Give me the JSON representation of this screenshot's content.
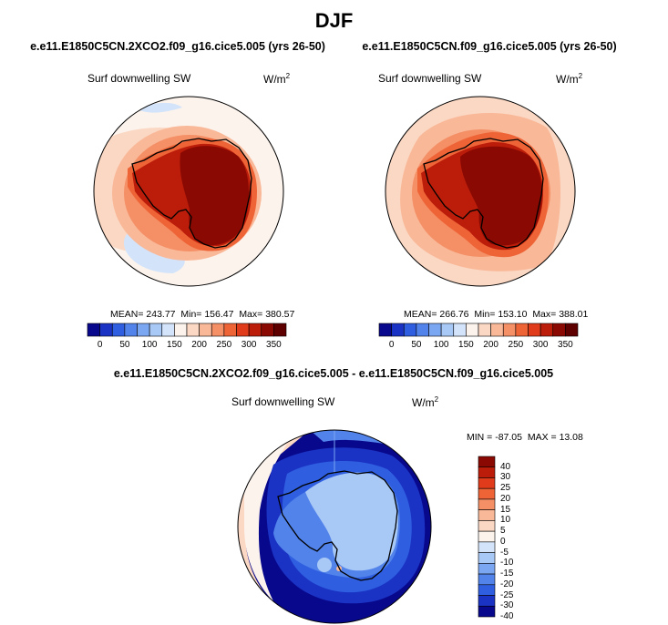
{
  "figure": {
    "season": "DJF"
  },
  "chart_data": [
    {
      "type": "heatmap",
      "projection": "south polar stereographic",
      "case": "e.e11.E1850C5CN.2XCO2.f09_g16.cice5.005 (yrs 26-50)",
      "variable": "Surf downwelling SW",
      "units": "W/m",
      "units_exp": "2",
      "stats": {
        "mean_label": "MEAN=",
        "mean": "243.77",
        "min_label": "Min=",
        "min": "156.47",
        "max_label": "Max=",
        "max": "380.57"
      },
      "colorbar": {
        "orientation": "horizontal",
        "levels": [
          0,
          25,
          50,
          75,
          100,
          125,
          150,
          175,
          200,
          225,
          250,
          275,
          300,
          325,
          350
        ],
        "tick_labels": [
          "0",
          "50",
          "100",
          "150",
          "200",
          "250",
          "300",
          "350"
        ],
        "colors": [
          "#08088c",
          "#1a33c4",
          "#2f5fe0",
          "#5283ea",
          "#7aa6f2",
          "#a8c8f6",
          "#d3e4fa",
          "#fcf3ed",
          "#fbd8c4",
          "#f9b898",
          "#f48f66",
          "#ee6437",
          "#e03b1a",
          "#bb1d0a",
          "#8a0a03",
          "#5e0000"
        ]
      }
    },
    {
      "type": "heatmap",
      "projection": "south polar stereographic",
      "case": "e.e11.E1850C5CN.f09_g16.cice5.005 (yrs 26-50)",
      "variable": "Surf downwelling SW",
      "units": "W/m",
      "units_exp": "2",
      "stats": {
        "mean_label": "MEAN=",
        "mean": "266.76",
        "min_label": "Min=",
        "min": "153.10",
        "max_label": "Max=",
        "max": "388.01"
      },
      "colorbar": {
        "orientation": "horizontal",
        "levels": [
          0,
          25,
          50,
          75,
          100,
          125,
          150,
          175,
          200,
          225,
          250,
          275,
          300,
          325,
          350
        ],
        "tick_labels": [
          "0",
          "50",
          "100",
          "150",
          "200",
          "250",
          "300",
          "350"
        ],
        "colors": [
          "#08088c",
          "#1a33c4",
          "#2f5fe0",
          "#5283ea",
          "#7aa6f2",
          "#a8c8f6",
          "#d3e4fa",
          "#fcf3ed",
          "#fbd8c4",
          "#f9b898",
          "#f48f66",
          "#ee6437",
          "#e03b1a",
          "#bb1d0a",
          "#8a0a03",
          "#5e0000"
        ]
      }
    },
    {
      "type": "heatmap",
      "projection": "south polar stereographic",
      "case": "e.e11.E1850C5CN.2XCO2.f09_g16.cice5.005 - e.e11.E1850C5CN.f09_g16.cice5.005",
      "variable": "Surf downwelling SW",
      "units": "W/m",
      "units_exp": "2",
      "stats": {
        "min_label": "MIN =",
        "min": "-87.05",
        "max_label": "MAX =",
        "max": "13.08"
      },
      "colorbar": {
        "orientation": "vertical",
        "levels": [
          -40,
          -30,
          -25,
          -20,
          -15,
          -10,
          -5,
          0,
          5,
          10,
          15,
          20,
          25,
          30,
          40
        ],
        "tick_labels": [
          "40",
          "30",
          "25",
          "20",
          "15",
          "10",
          "5",
          "0",
          "-5",
          "-10",
          "-15",
          "-20",
          "-25",
          "-30",
          "-40"
        ],
        "colors": [
          "#8a0a03",
          "#bb1d0a",
          "#e03b1a",
          "#ee6437",
          "#f48f66",
          "#f9b898",
          "#fbd8c4",
          "#fcf3ed",
          "#d3e4fa",
          "#a8c8f6",
          "#7aa6f2",
          "#5283ea",
          "#2f5fe0",
          "#1a33c4",
          "#08088c"
        ]
      }
    }
  ]
}
